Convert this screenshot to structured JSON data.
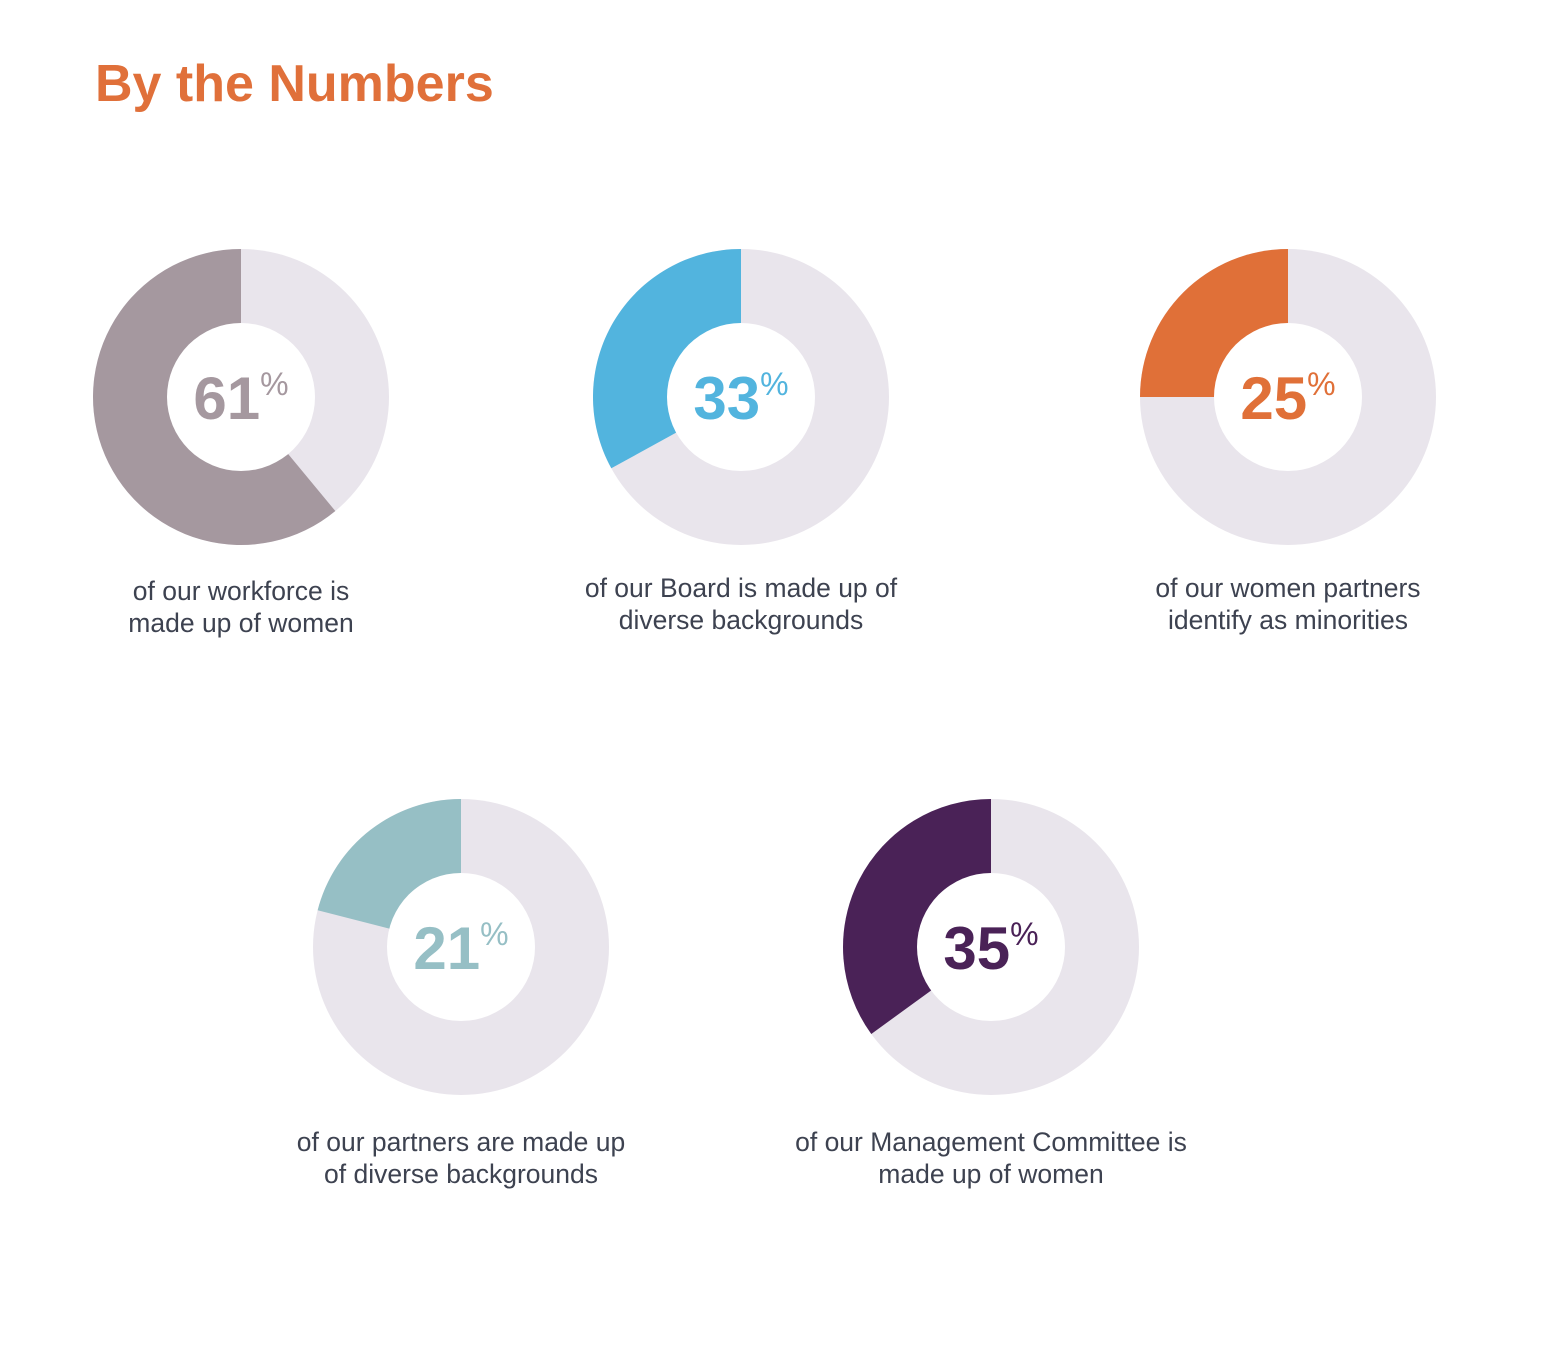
{
  "title": "By the Numbers",
  "colors": {
    "title": "#e0703a",
    "track": "#e9e5ec",
    "center": "#ffffff",
    "caption": "#3d4250"
  },
  "percent_symbol": "%",
  "chart_data": {
    "type": "pie",
    "title": "By the Numbers",
    "items": [
      {
        "value": 61,
        "label": "61",
        "caption": [
          "of our workforce is",
          "made up of women"
        ],
        "color": "#a5989f"
      },
      {
        "value": 33,
        "label": "33",
        "caption": [
          "of our Board is made up of",
          "diverse backgrounds"
        ],
        "color": "#52b4de"
      },
      {
        "value": 25,
        "label": "25",
        "caption": [
          "of our women partners",
          "identify as minorities"
        ],
        "color": "#e07038"
      },
      {
        "value": 21,
        "label": "21",
        "caption": [
          "of our partners are made up",
          "of diverse backgrounds"
        ],
        "color": "#96bfc5"
      },
      {
        "value": 35,
        "label": "35",
        "caption": [
          "of our Management Committee is",
          "made up of women"
        ],
        "color": "#4a2257"
      }
    ]
  }
}
